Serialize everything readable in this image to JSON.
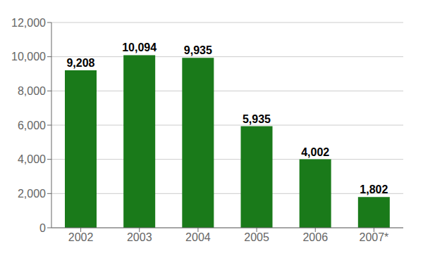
{
  "chart_data": {
    "type": "bar",
    "categories": [
      "2002",
      "2003",
      "2004",
      "2005",
      "2006",
      "2007*"
    ],
    "values": [
      9208,
      10094,
      9935,
      5935,
      4002,
      1802
    ],
    "value_labels": [
      "9,208",
      "10,094",
      "9,935",
      "5,935",
      "4,002",
      "1,802"
    ],
    "color": "#1a7a1a",
    "ylim": [
      0,
      12000
    ],
    "yticks": [
      0,
      {
        "value": 2000,
        "label": "2,000"
      },
      {
        "value": 4000,
        "label": "4,000"
      },
      {
        "value": 6000,
        "label": "6,000"
      },
      {
        "value": 8000,
        "label": "8,000"
      },
      {
        "value": 10000,
        "label": "10,000"
      },
      {
        "value": 12000,
        "label": "12,000"
      }
    ],
    "grid": true,
    "data_labels": true
  }
}
